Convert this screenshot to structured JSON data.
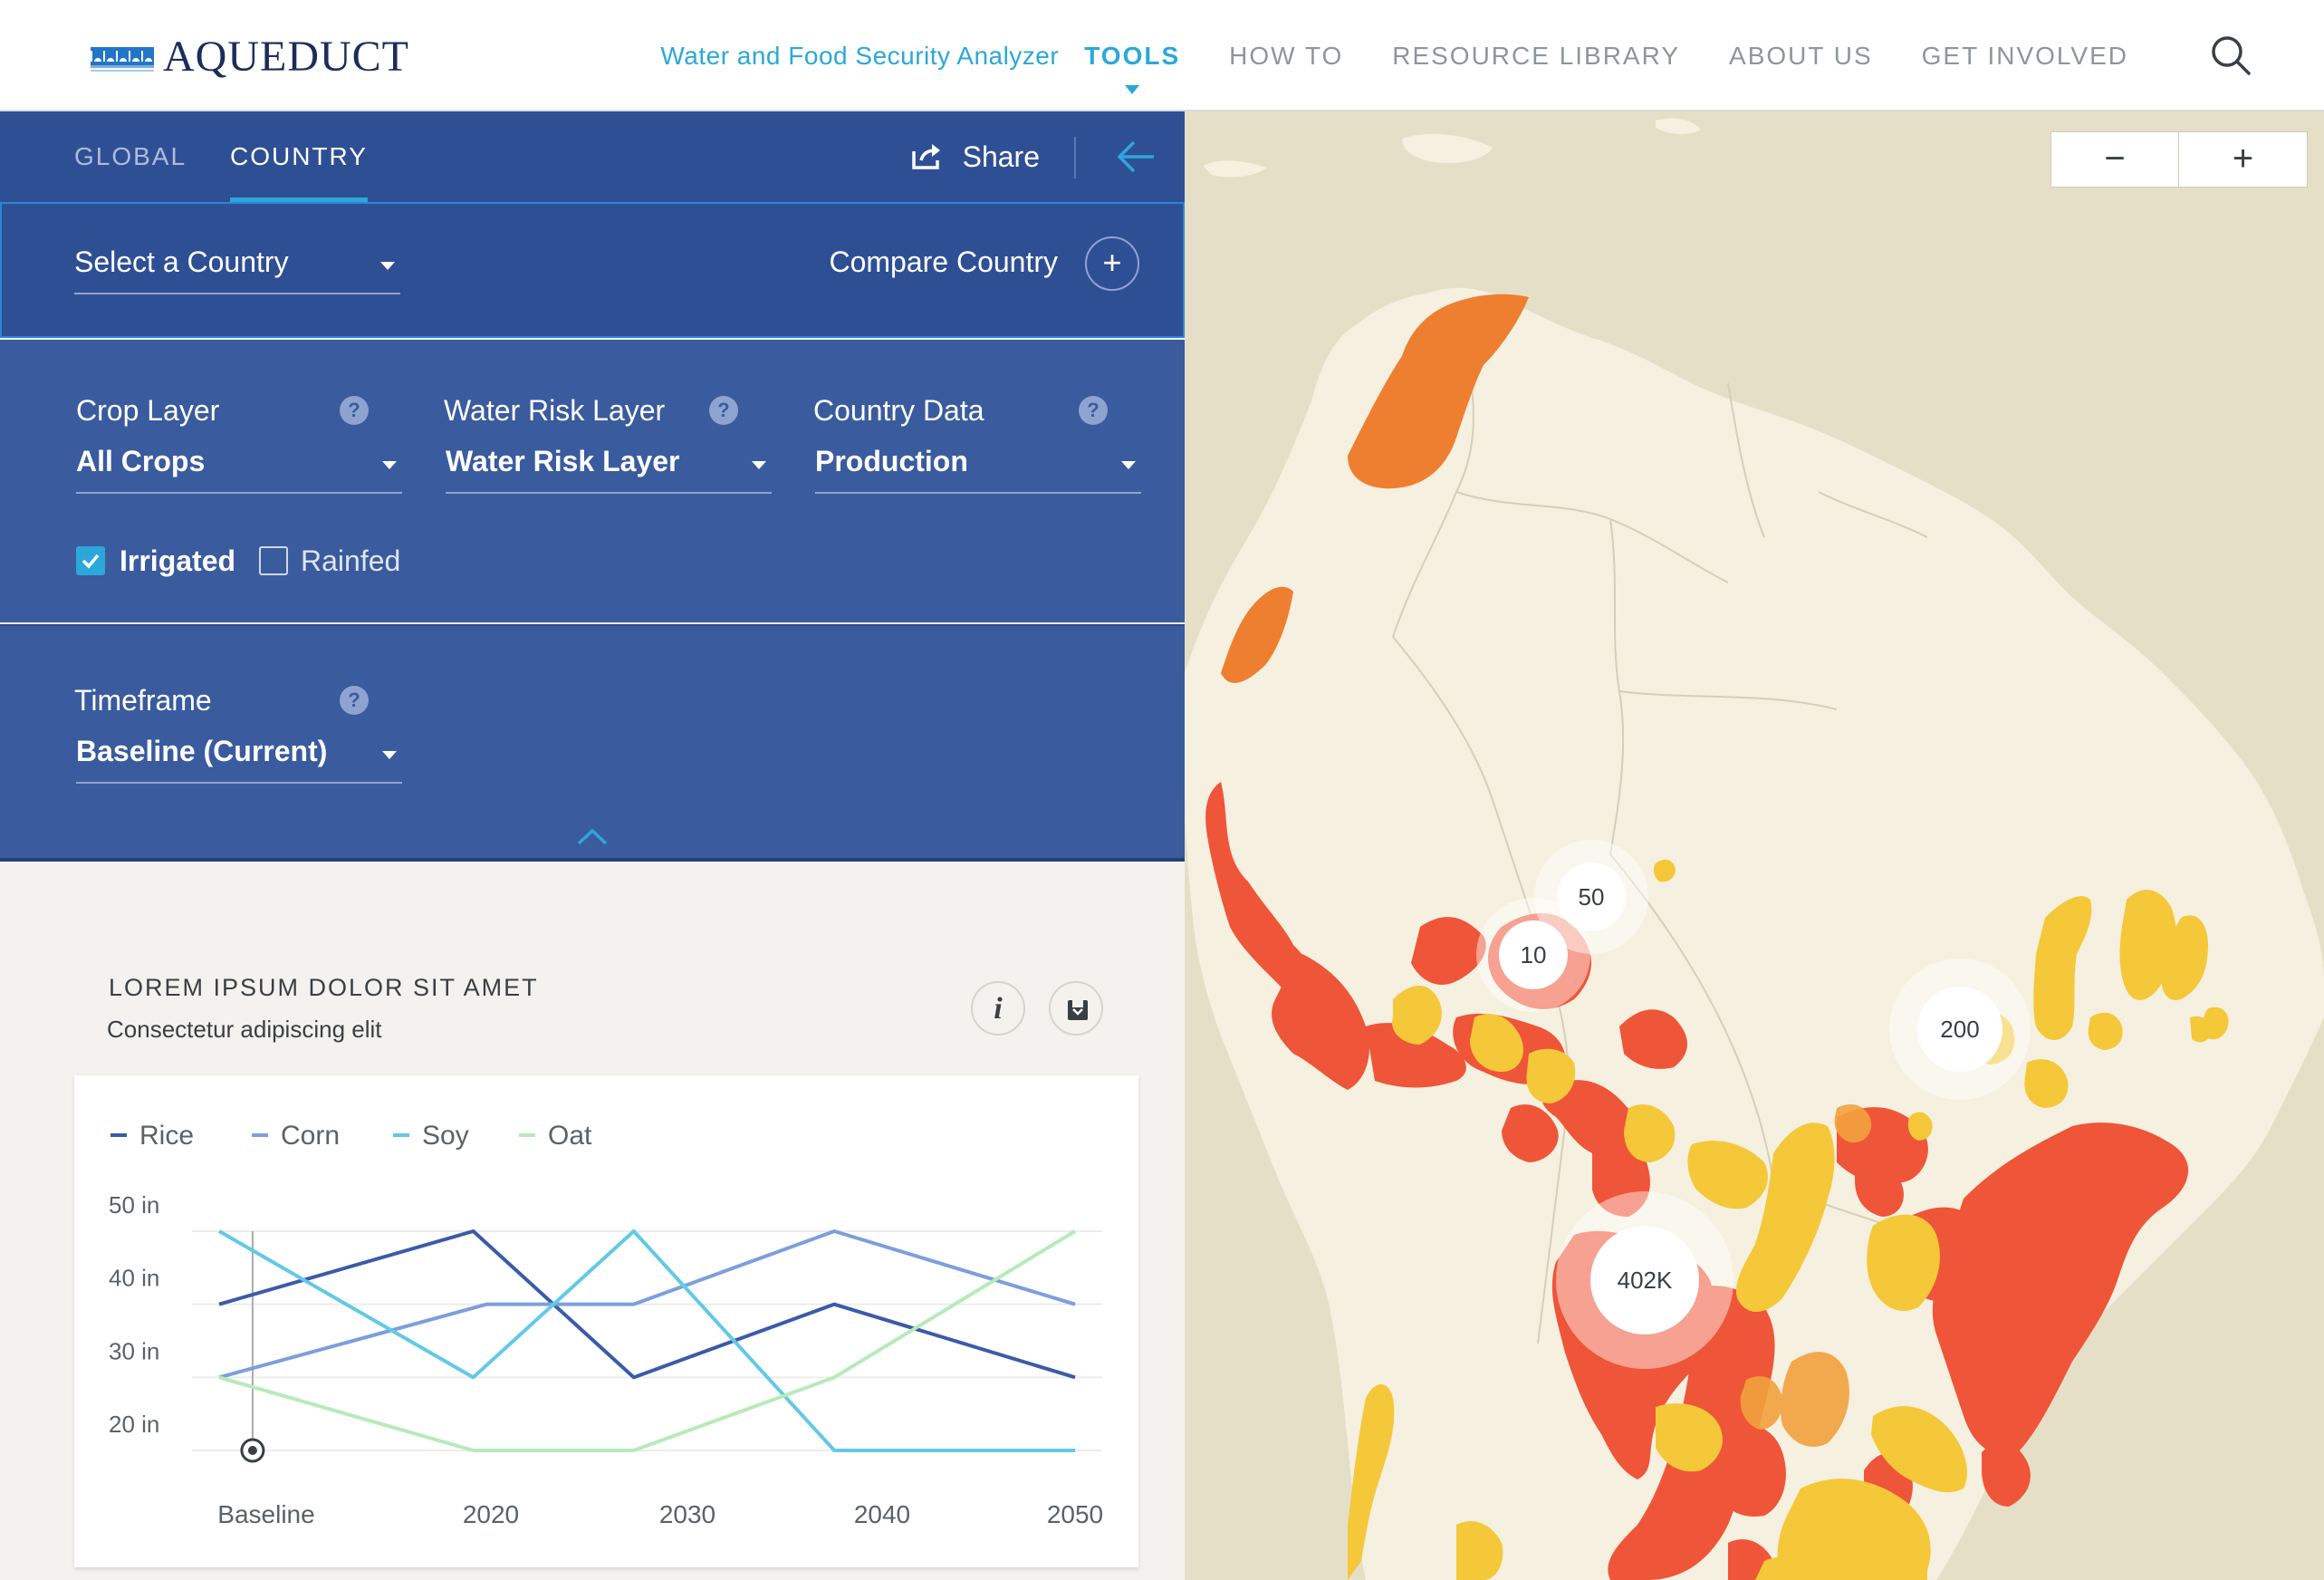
{
  "brand": {
    "name": "AQUEDUCT",
    "icon": "aqueduct-logo-icon"
  },
  "nav": {
    "subtitle": "Water and Food Security Analyzer",
    "items": [
      "TOOLS",
      "HOW TO",
      "RESOURCE LIBRARY",
      "ABOUT US",
      "GET INVOLVED"
    ],
    "active": "TOOLS",
    "search_icon": "search-icon"
  },
  "tabs": {
    "global": "GLOBAL",
    "country": "COUNTRY",
    "active": "COUNTRY"
  },
  "share": {
    "label": "Share"
  },
  "country": {
    "select_placeholder": "Select a Country",
    "compare_label": "Compare Country",
    "compare_icon": "+"
  },
  "filters": {
    "crop": {
      "label": "Crop Layer",
      "value": "All Crops"
    },
    "water": {
      "label": "Water Risk Layer",
      "value": "Water Risk Layer"
    },
    "data": {
      "label": "Country Data",
      "value": "Production"
    },
    "help_icon": "?",
    "irrigated": {
      "label": "Irrigated",
      "checked": true
    },
    "rainfed": {
      "label": "Rainfed",
      "checked": false
    }
  },
  "timeframe": {
    "label": "Timeframe",
    "value": "Baseline (Current)"
  },
  "widget": {
    "title": "LOREM IPSUM DOLOR SIT AMET",
    "subtitle": "Consectetur adipiscing elit",
    "info_icon": "i"
  },
  "chart_data": {
    "type": "line",
    "categories": [
      "Baseline",
      "2020",
      "2030",
      "2040",
      "2050"
    ],
    "x_positions": [
      0,
      1.5714,
      3.1429,
      4.7143,
      6.2857,
      7.0
    ],
    "yticks": [
      "50 in",
      "40 in",
      "30 in",
      "20 in"
    ],
    "ylim": [
      20,
      50
    ],
    "marker_at": 0.25,
    "series": [
      {
        "name": "Rice",
        "color": "#3a5ba8",
        "points": [
          [
            0,
            40
          ],
          [
            1.9,
            50
          ],
          [
            3.1,
            30
          ],
          [
            4.6,
            40
          ],
          [
            6.4,
            30
          ]
        ]
      },
      {
        "name": "Corn",
        "color": "#7c9fdc",
        "points": [
          [
            0,
            30
          ],
          [
            2.0,
            40
          ],
          [
            3.1,
            40
          ],
          [
            4.6,
            50
          ],
          [
            6.4,
            40
          ]
        ]
      },
      {
        "name": "Soy",
        "color": "#62c9e6",
        "points": [
          [
            0,
            50
          ],
          [
            1.9,
            30
          ],
          [
            3.1,
            50
          ],
          [
            4.6,
            20
          ],
          [
            6.4,
            20
          ]
        ]
      },
      {
        "name": "Oat",
        "color": "#b5ebb8",
        "points": [
          [
            0,
            30
          ],
          [
            1.9,
            20
          ],
          [
            3.1,
            20
          ],
          [
            4.6,
            30
          ],
          [
            6.4,
            50
          ]
        ]
      }
    ]
  },
  "map": {
    "zoom_out": "−",
    "zoom_in": "+",
    "clusters": [
      {
        "label": "50"
      },
      {
        "label": "10"
      },
      {
        "label": "200"
      },
      {
        "label": "402K"
      }
    ]
  }
}
